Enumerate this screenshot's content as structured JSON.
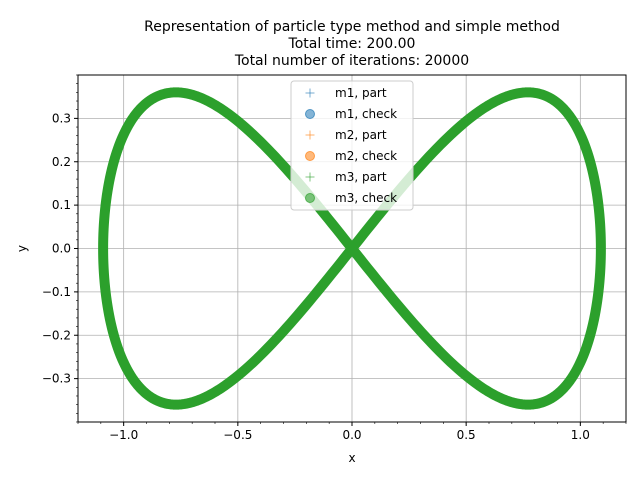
{
  "chart_data": {
    "type": "scatter",
    "title_lines": [
      "Representation of particle type method and simple method",
      "Total time: 200.00",
      "Total number of iterations: 20000"
    ],
    "xlabel": "x",
    "ylabel": "y",
    "xlim": [
      -1.2,
      1.2
    ],
    "ylim": [
      -0.4,
      0.4
    ],
    "x_ticks": [
      -1.0,
      -0.5,
      0.0,
      0.5,
      1.0
    ],
    "x_tick_labels": [
      "−1.0",
      "−0.5",
      "0.0",
      "0.5",
      "1.0"
    ],
    "y_ticks": [
      -0.3,
      -0.2,
      -0.1,
      0.0,
      0.1,
      0.2,
      0.3
    ],
    "y_tick_labels": [
      "−0.3",
      "−0.2",
      "−0.1",
      "0.0",
      "0.1",
      "0.2",
      "0.3"
    ],
    "grid": true,
    "legend_position": "top-center",
    "curve": {
      "shape": "figure-eight",
      "x_extent": [
        -1.09,
        1.09
      ],
      "y_extent": [
        -0.36,
        0.36
      ],
      "lobe_centers_x": [
        -0.66,
        0.66
      ],
      "crossing_point": [
        0.0,
        0.0
      ]
    },
    "series": [
      {
        "name": "m1, part",
        "marker": "plus",
        "color": "#1f77b4"
      },
      {
        "name": "m1, check",
        "marker": "circle",
        "color": "#1f77b4"
      },
      {
        "name": "m2, part",
        "marker": "plus",
        "color": "#ff7f0e"
      },
      {
        "name": "m2, check",
        "marker": "circle",
        "color": "#ff7f0e"
      },
      {
        "name": "m3, part",
        "marker": "plus",
        "color": "#2ca02c"
      },
      {
        "name": "m3, check",
        "marker": "circle",
        "color": "#2ca02c"
      }
    ]
  }
}
